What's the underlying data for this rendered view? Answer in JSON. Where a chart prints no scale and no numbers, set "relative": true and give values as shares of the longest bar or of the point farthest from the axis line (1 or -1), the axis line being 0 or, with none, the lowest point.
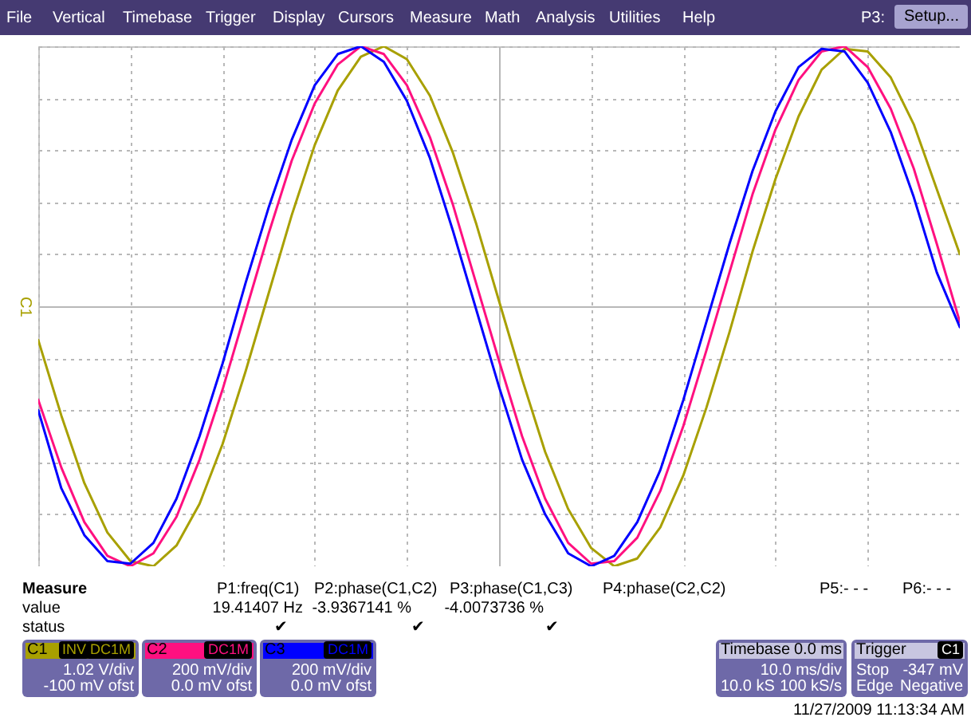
{
  "chart_data": {
    "type": "line",
    "relative": true,
    "grid": true,
    "legend": "bottom",
    "categories": [
      null,
      null,
      null,
      null,
      null,
      null,
      null,
      null,
      null,
      null,
      null,
      null,
      null,
      null,
      null,
      null,
      null,
      null,
      null,
      null,
      null,
      null,
      null,
      null,
      null,
      null,
      null,
      null,
      null,
      null,
      null,
      null,
      null,
      null,
      null,
      null,
      null,
      null,
      null,
      null,
      null
    ],
    "series": [
      {
        "name": "C1",
        "color": "#a8a000",
        "values": [
          -0.13,
          -0.42,
          -0.68,
          -0.87,
          -0.98,
          -1.0,
          -0.92,
          -0.76,
          -0.53,
          -0.25,
          0.05,
          0.35,
          0.62,
          0.83,
          0.96,
          1.0,
          0.95,
          0.81,
          0.59,
          0.32,
          0.02,
          -0.28,
          -0.56,
          -0.78,
          -0.93,
          -1.0,
          -0.97,
          -0.85,
          -0.65,
          -0.39,
          -0.1,
          0.21,
          0.49,
          0.73,
          0.91,
          0.99,
          0.98,
          0.88,
          0.7,
          0.45,
          0.2
        ]
      },
      {
        "name": "C2",
        "color": "#ff1080",
        "values": [
          -0.36,
          -0.62,
          -0.83,
          -0.96,
          -1.0,
          -0.95,
          -0.81,
          -0.59,
          -0.32,
          -0.02,
          0.28,
          0.56,
          0.78,
          0.93,
          1.0,
          0.97,
          0.85,
          0.65,
          0.39,
          0.09,
          -0.21,
          -0.5,
          -0.74,
          -0.91,
          -0.99,
          -0.98,
          -0.89,
          -0.71,
          -0.46,
          -0.17,
          0.13,
          0.43,
          0.68,
          0.87,
          0.98,
          1.0,
          0.92,
          0.76,
          0.53,
          0.24,
          -0.06
        ]
      },
      {
        "name": "C3",
        "color": "#0000ff",
        "values": [
          -0.4,
          -0.7,
          -0.88,
          -0.98,
          -0.99,
          -0.91,
          -0.74,
          -0.5,
          -0.22,
          0.09,
          0.38,
          0.64,
          0.85,
          0.97,
          1.0,
          0.94,
          0.79,
          0.57,
          0.29,
          -0.01,
          -0.31,
          -0.59,
          -0.8,
          -0.95,
          -1.0,
          -0.96,
          -0.83,
          -0.63,
          -0.36,
          -0.06,
          0.24,
          0.52,
          0.75,
          0.92,
          0.99,
          0.98,
          0.86,
          0.67,
          0.42,
          0.13,
          -0.08
        ]
      }
    ],
    "annotations": [
      "File",
      "Vertical",
      "Timebase",
      "Trigger",
      "Display",
      "Cursors",
      "Measure",
      "Math",
      "Analysis",
      "Utilities",
      "Help",
      "P3:",
      "Setup...",
      "Measure",
      "P1:freq(C1)",
      "P2:phase(C1,C2)",
      "P3:phase(C1,C3)",
      "P4:phase(C2,C2)",
      "P5:- - -",
      "P6:- - -",
      "value",
      "19.41407 Hz",
      "-3.9367141 %",
      "-4.0073736 %",
      "status",
      "✔",
      "✔",
      "✔",
      "INV",
      "DC1M",
      "1.02 V/div",
      "-100 mV ofst",
      "DC1M",
      "200 mV/div",
      "0.0 mV ofst",
      "DC1M",
      "200 mV/div",
      "0.0 mV ofst",
      "Timebase",
      "0.0 ms",
      "10.0 ms/div",
      "10.0 kS",
      "100 kS/s",
      "Trigger",
      "C1",
      "Stop",
      "-347 mV",
      "Edge",
      "Negative",
      "11/27/2009 11:13:34 AM",
      "C1"
    ]
  }
}
